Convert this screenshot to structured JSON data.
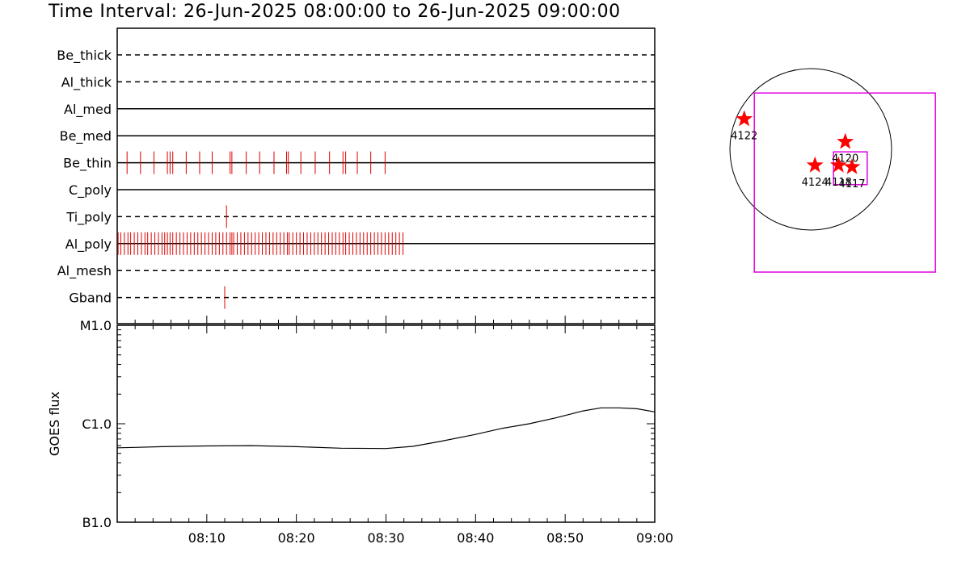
{
  "title": "Time Interval: 26-Jun-2025 08:00:00 to 26-Jun-2025 09:00:00",
  "chart_data": [
    {
      "type": "scatter",
      "name": "filter-rows",
      "x_range_minutes": [
        0,
        60
      ],
      "rows": [
        {
          "label": "Be_thick",
          "line": "dashed",
          "events": []
        },
        {
          "label": "Al_thick",
          "line": "dashed",
          "events": []
        },
        {
          "label": "Al_med",
          "line": "solid",
          "events": []
        },
        {
          "label": "Be_med",
          "line": "solid",
          "events": []
        },
        {
          "label": "Be_thin",
          "line": "solid",
          "events": [
            1.1,
            2.6,
            4.1,
            5.6,
            5.9,
            6.2,
            7.7,
            9.2,
            10.6,
            12.6,
            12.8,
            14.4,
            15.9,
            17.5,
            18.9,
            19.1,
            20.5,
            22.1,
            23.7,
            25.2,
            25.5,
            26.8,
            28.3,
            29.9
          ]
        },
        {
          "label": "C_poly",
          "line": "solid",
          "events": []
        },
        {
          "label": "Ti_poly",
          "line": "dashed",
          "events": [
            12.2
          ]
        },
        {
          "label": "Al_poly",
          "line": "solid",
          "events": [
            0.1,
            0.4,
            0.8,
            1.2,
            1.5,
            1.9,
            2.3,
            2.7,
            3.1,
            3.4,
            3.8,
            4.2,
            4.6,
            5.0,
            5.3,
            5.6,
            5.9,
            6.2,
            6.6,
            7.0,
            7.4,
            7.8,
            8.2,
            8.6,
            9.0,
            9.4,
            9.8,
            10.2,
            10.6,
            11.0,
            11.4,
            11.8,
            12.2,
            12.6,
            12.8,
            13.0,
            13.4,
            13.8,
            14.2,
            14.6,
            15.0,
            15.4,
            15.8,
            16.2,
            16.6,
            17.0,
            17.4,
            17.8,
            18.2,
            18.6,
            19.0,
            19.2,
            19.6,
            20.0,
            20.4,
            20.8,
            21.2,
            21.6,
            22.0,
            22.4,
            22.8,
            23.2,
            23.6,
            24.0,
            24.4,
            24.8,
            25.2,
            25.5,
            25.9,
            26.3,
            26.7,
            27.1,
            27.5,
            27.9,
            28.3,
            28.7,
            29.1,
            29.5,
            29.9,
            30.3,
            30.7,
            31.1,
            31.5,
            31.9
          ]
        },
        {
          "label": "Al_mesh",
          "line": "dashed",
          "events": []
        },
        {
          "label": "Gband",
          "line": "dashed",
          "events": [
            12.0
          ]
        }
      ]
    },
    {
      "type": "line",
      "name": "goes-flux",
      "ylabel": "GOES flux",
      "y_scale": "log",
      "y_ticks": [
        {
          "label": "M1.0",
          "value": 1e-05
        },
        {
          "label": "C1.0",
          "value": 1e-06
        },
        {
          "label": "B1.0",
          "value": 1e-07
        }
      ],
      "ylim": [
        1e-07,
        1e-05
      ],
      "x_ticks": [
        {
          "label": "08:10",
          "value": 10
        },
        {
          "label": "08:20",
          "value": 20
        },
        {
          "label": "08:30",
          "value": 30
        },
        {
          "label": "08:40",
          "value": 40
        },
        {
          "label": "08:50",
          "value": 50
        },
        {
          "label": "09:00",
          "value": 60
        }
      ],
      "x_range_minutes": [
        0,
        60
      ],
      "series": [
        {
          "x": [
            0,
            2,
            5,
            10,
            15,
            20,
            25,
            30,
            33,
            36,
            40,
            43,
            46,
            49,
            52,
            54,
            56,
            58,
            60
          ],
          "y": [
            5.7e-07,
            5.75e-07,
            5.85e-07,
            5.95e-07,
            6e-07,
            5.85e-07,
            5.65e-07,
            5.6e-07,
            5.9e-07,
            6.6e-07,
            7.8e-07,
            9e-07,
            1e-06,
            1.15e-06,
            1.35e-06,
            1.45e-06,
            1.45e-06,
            1.42e-06,
            1.32e-06
          ]
        }
      ]
    },
    {
      "type": "scatter",
      "name": "solar-disk-map",
      "units": "arcsec",
      "solar_radius": 960,
      "points": [
        {
          "label": "4122",
          "x": -790,
          "y": 360
        },
        {
          "label": "4120",
          "x": 410,
          "y": 90
        },
        {
          "label": "4124",
          "x": 50,
          "y": -190
        },
        {
          "label": "4118",
          "x": 330,
          "y": -190
        },
        {
          "label": "4117",
          "x": 490,
          "y": -210
        }
      ],
      "boxes": [
        {
          "color": "#e000e0",
          "x0": -670,
          "x1": 1480,
          "y0": 670,
          "y1": -1460
        },
        {
          "color": "#e000e0",
          "x0": 270,
          "x1": 670,
          "y0": -30,
          "y1": -420
        }
      ]
    }
  ],
  "colors": {
    "event": "#dd0000",
    "star": "#ff0000",
    "box": "#e000e0",
    "axis": "#000000"
  }
}
